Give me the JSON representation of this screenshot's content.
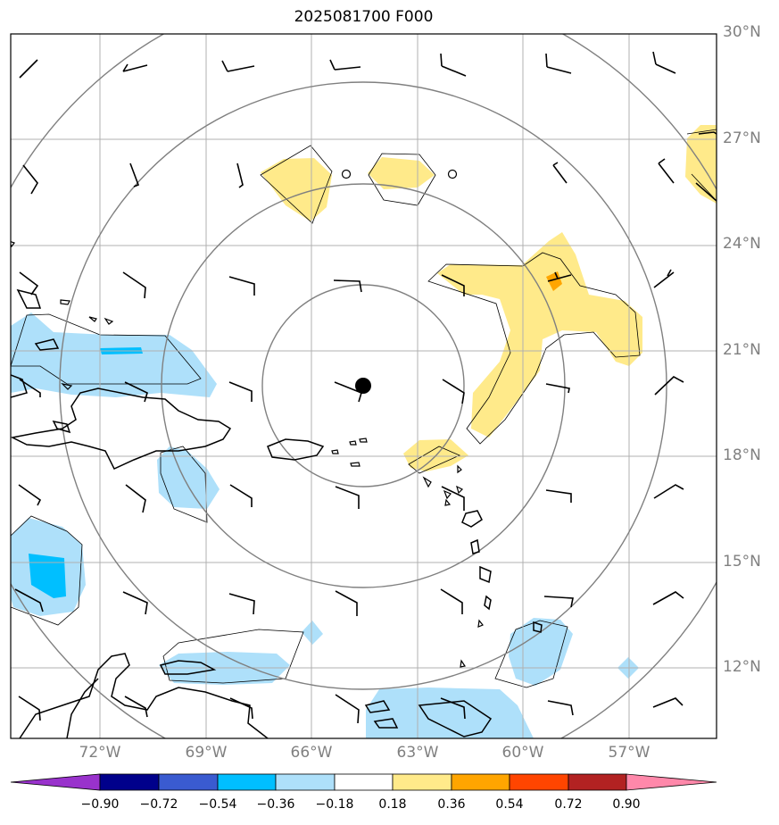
{
  "title": "2025081700 F000",
  "lat_labels": [
    "30°N",
    "27°N",
    "24°N",
    "21°N",
    "18°N",
    "15°N",
    "12°N"
  ],
  "lon_labels": [
    "72°W",
    "69°W",
    "66°W",
    "63°W",
    "60°W",
    "57°W"
  ],
  "colorbar": {
    "ticks": [
      "−0.90",
      "−0.72",
      "−0.54",
      "−0.36",
      "−0.18",
      "0.18",
      "0.36",
      "0.54",
      "0.72",
      "0.90"
    ],
    "colors": [
      "#9932cc",
      "#00008b",
      "#3a5bd0",
      "#00bfff",
      "#aee0fa",
      "#ffffff",
      "#ffea8a",
      "#ffa500",
      "#ff4500",
      "#b22222",
      "#ff88aa"
    ]
  },
  "center_marker": {
    "lat": 20.0,
    "lon": -64.5
  }
}
